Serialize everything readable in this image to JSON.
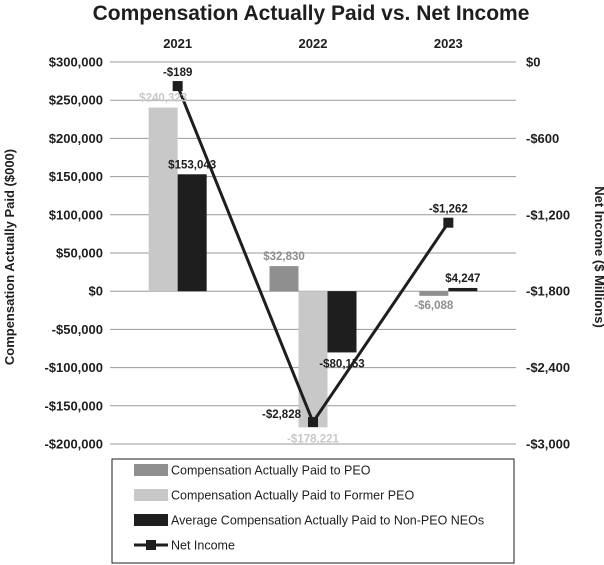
{
  "chart_data": {
    "type": "bar",
    "title": "Compensation Actually Paid vs. Net Income",
    "categories": [
      "2021",
      "2022",
      "2023"
    ],
    "ylabel": "Compensation Actually Paid ($000)",
    "y2label": "Net Income ($ Millions)",
    "ylim": [
      -200000,
      300000
    ],
    "y2lim": [
      -3000,
      0
    ],
    "yticks": [
      300000,
      250000,
      200000,
      150000,
      100000,
      50000,
      0,
      -50000,
      -100000,
      -150000,
      -200000
    ],
    "ytick_labels": [
      "$300,000",
      "$250,000",
      "$200,000",
      "$150,000",
      "$100,000",
      "$50,000",
      "$0",
      "-$50,000",
      "-$100,000",
      "-$150,000",
      "-$200,000"
    ],
    "y2ticks": [
      0,
      -600,
      -1200,
      -1800,
      -2400,
      -3000
    ],
    "y2tick_labels": [
      "$0",
      "-$600",
      "-$1,200",
      "-$1,800",
      "-$2,400",
      "-$3,000"
    ],
    "series": [
      {
        "name": "Compensation Actually Paid to PEO",
        "type": "bar",
        "axis": "left",
        "color": "#8f8f8f",
        "label_color": "#8f8f8f",
        "values": [
          null,
          32830,
          -6088
        ],
        "labels": [
          "",
          "$32,830",
          "-$6,088"
        ]
      },
      {
        "name": "Compensation Actually Paid to Former PEO",
        "type": "bar",
        "axis": "left",
        "color": "#c8c8c8",
        "label_color": "#c8c8c8",
        "values": [
          240323,
          -178221,
          null
        ],
        "labels": [
          "$240,323",
          "-$178,221",
          ""
        ]
      },
      {
        "name": "Average Compensation Actually Paid to Non-PEO NEOs",
        "type": "bar",
        "axis": "left",
        "color": "#1e1e1e",
        "label_color": "#1e1e1e",
        "values": [
          153043,
          -80153,
          4247
        ],
        "labels": [
          "$153,043",
          "-$80,153",
          "$4,247"
        ]
      },
      {
        "name": "Net Income",
        "type": "line",
        "axis": "right",
        "color": "#1e1e1e",
        "label_color": "#1e1e1e",
        "values": [
          -189,
          -2828,
          -1262
        ],
        "labels": [
          "-$189",
          "-$2,828",
          "-$1,262"
        ]
      }
    ]
  }
}
